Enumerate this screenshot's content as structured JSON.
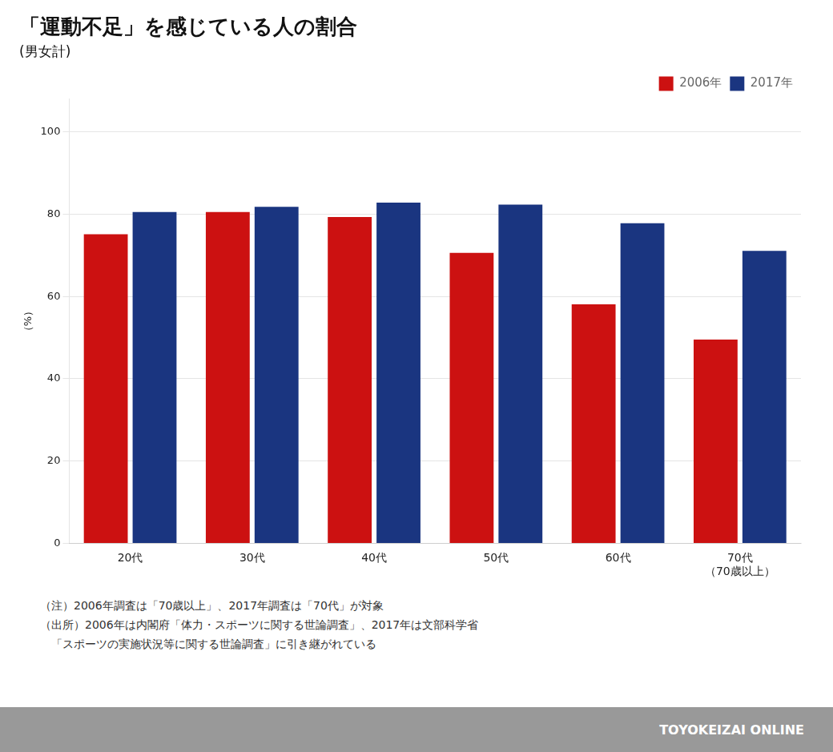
{
  "chart_data": {
    "type": "bar",
    "title": "「運動不足」を感じている人の割合",
    "subtitle": "(男女計)",
    "categories": [
      "20代",
      "30代",
      "40代",
      "50代",
      "60代",
      "70代\n（70歳以上）"
    ],
    "series": [
      {
        "name": "2006年",
        "color": "#cc1111",
        "values": [
          75.1,
          80.5,
          79.3,
          70.6,
          58.1,
          49.5
        ]
      },
      {
        "name": "2017年",
        "color": "#1a3580",
        "values": [
          80.5,
          81.8,
          82.8,
          82.3,
          77.8,
          71.1
        ]
      }
    ],
    "y_label": "（%）",
    "ylim": [
      0,
      108
    ],
    "yticks": [
      0,
      20,
      40,
      60,
      80,
      100
    ],
    "grid": true,
    "legend": "upper right",
    "notes": [
      "（注）2006年調査は「70歳以上」、2017年調査は「70代」が対象",
      "（出所）2006年は内閣府「体力・スポーツに関する世論調査」、2017年は文部科学省",
      "　「スポーツの実施状況等に関する世論調査」に引き継がれている"
    ],
    "footer": "TOYOKEIZAI ONLINE"
  }
}
